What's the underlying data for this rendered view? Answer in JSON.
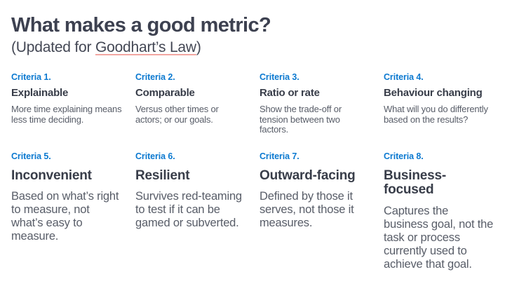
{
  "header": {
    "title": "What makes a good metric?",
    "subtitle_prefix": "(Updated for ",
    "subtitle_link": "Goodhart’s Law",
    "subtitle_suffix": ")"
  },
  "colors": {
    "accent_blue": "#0b79d0",
    "heading_text": "#383d49",
    "body_text": "#585d68",
    "link_underline": "#f2a6a1",
    "background": "#ffffff"
  },
  "criteria": [
    {
      "label": "Criteria 1.",
      "title": "Explainable",
      "description": "More time explaining means less time deciding."
    },
    {
      "label": "Criteria 2.",
      "title": "Comparable",
      "description": "Versus other times or actors; or our goals."
    },
    {
      "label": "Criteria 3.",
      "title": "Ratio or rate",
      "description": "Show the trade-off or tension between two factors."
    },
    {
      "label": "Criteria 4.",
      "title": "Behaviour changing",
      "description": "What will you do differently based on the results?"
    },
    {
      "label": "Criteria 5.",
      "title": "Inconvenient",
      "description": "Based on what’s right to measure, not what’s easy to measure."
    },
    {
      "label": "Criteria 6.",
      "title": "Resilient",
      "description": "Survives red-teaming to test if it can be gamed or subverted."
    },
    {
      "label": "Criteria 7.",
      "title": "Outward-facing",
      "description": "Defined by those it serves, not those it measures."
    },
    {
      "label": "Criteria 8.",
      "title": "Business-focused",
      "description": "Captures the business goal, not the task or process currently used to achieve that goal."
    }
  ]
}
